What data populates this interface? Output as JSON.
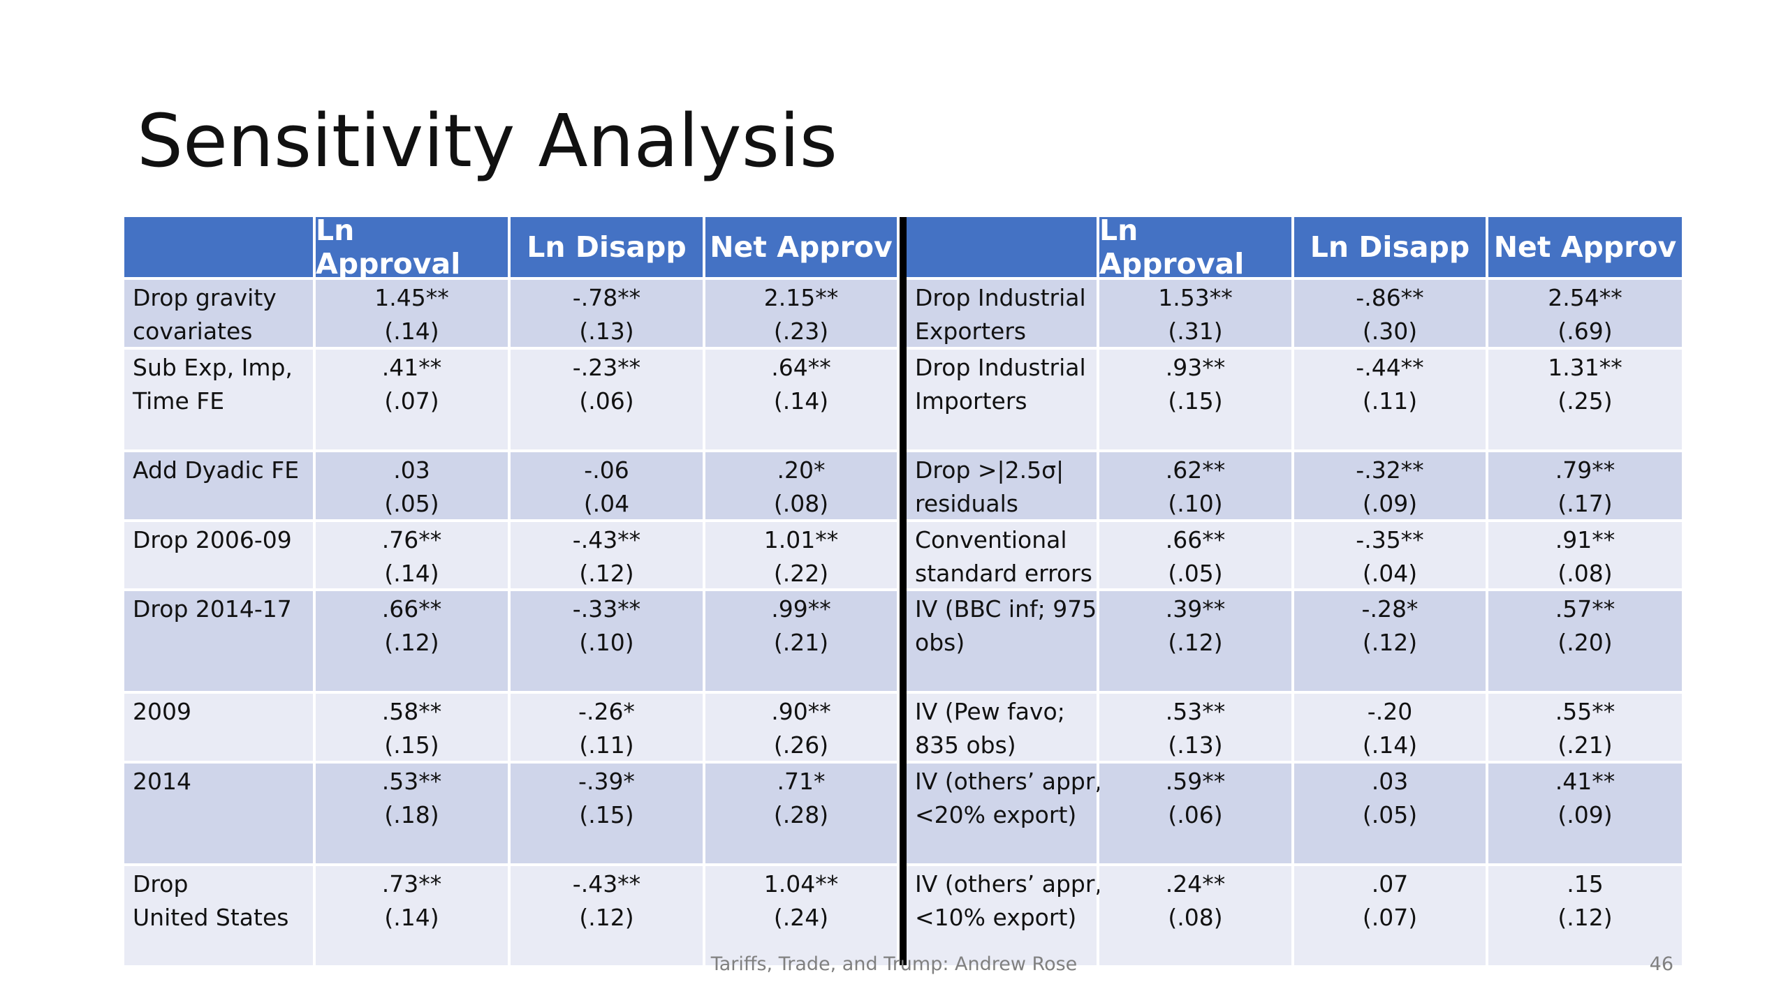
{
  "title": "Sensitivity Analysis",
  "header": {
    "left": [
      "",
      "Ln Approval",
      "Ln Disapp",
      "Net Approv"
    ],
    "right": [
      "",
      "Ln Approval",
      "Ln Disapp",
      "Net Approv"
    ]
  },
  "rows": [
    {
      "left_label": [
        "Drop gravity",
        "covariates"
      ],
      "left_vals": [
        [
          "1.45**",
          "(.14)"
        ],
        [
          "-.78**",
          "(.13)"
        ],
        [
          "2.15**",
          "(.23)"
        ]
      ],
      "right_label": [
        "Drop Industrial",
        "Exporters"
      ],
      "right_vals": [
        [
          "1.53**",
          "(.31)"
        ],
        [
          "-.86**",
          "(.30)"
        ],
        [
          "2.54**",
          "(.69)"
        ]
      ]
    },
    {
      "left_label": [
        "Sub Exp, Imp,",
        "Time FE"
      ],
      "left_vals": [
        [
          ".41**",
          "(.07)"
        ],
        [
          "-.23**",
          "(.06)"
        ],
        [
          ".64**",
          "(.14)"
        ]
      ],
      "right_label": [
        "Drop Industrial",
        "Importers"
      ],
      "right_vals": [
        [
          ".93**",
          "(.15)"
        ],
        [
          "-.44**",
          "(.11)"
        ],
        [
          "1.31**",
          "(.25)"
        ]
      ]
    },
    {
      "left_label": [
        "Add Dyadic FE",
        ""
      ],
      "left_vals": [
        [
          ".03",
          "(.05)"
        ],
        [
          "-.06",
          "(.04"
        ],
        [
          ".20*",
          "(.08)"
        ]
      ],
      "right_label": [
        "Drop >|2.5σ|",
        "residuals"
      ],
      "right_vals": [
        [
          ".62**",
          "(.10)"
        ],
        [
          "-.32**",
          "(.09)"
        ],
        [
          ".79**",
          "(.17)"
        ]
      ]
    },
    {
      "left_label": [
        "Drop 2006-09",
        ""
      ],
      "left_vals": [
        [
          ".76**",
          "(.14)"
        ],
        [
          "-.43**",
          "(.12)"
        ],
        [
          "1.01**",
          "(.22)"
        ]
      ],
      "right_label": [
        "Conventional",
        "standard errors"
      ],
      "right_vals": [
        [
          ".66**",
          "(.05)"
        ],
        [
          "-.35**",
          "(.04)"
        ],
        [
          ".91**",
          "(.08)"
        ]
      ]
    },
    {
      "left_label": [
        "Drop 2014-17",
        ""
      ],
      "left_vals": [
        [
          ".66**",
          "(.12)"
        ],
        [
          "-.33**",
          "(.10)"
        ],
        [
          ".99**",
          "(.21)"
        ]
      ],
      "right_label": [
        "IV (BBC inf; 975",
        "obs)"
      ],
      "right_vals": [
        [
          ".39**",
          "(.12)"
        ],
        [
          "-.28*",
          "(.12)"
        ],
        [
          ".57**",
          "(.20)"
        ]
      ]
    },
    {
      "left_label": [
        "2009",
        ""
      ],
      "left_vals": [
        [
          ".58**",
          "(.15)"
        ],
        [
          "-.26*",
          "(.11)"
        ],
        [
          ".90**",
          "(.26)"
        ]
      ],
      "right_label": [
        "IV (Pew favo;",
        "835 obs)"
      ],
      "right_vals": [
        [
          ".53**",
          "(.13)"
        ],
        [
          "-.20",
          "(.14)"
        ],
        [
          ".55**",
          "(.21)"
        ]
      ]
    },
    {
      "left_label": [
        "2014",
        ""
      ],
      "left_vals": [
        [
          ".53**",
          "(.18)"
        ],
        [
          "-.39*",
          "(.15)"
        ],
        [
          ".71*",
          "(.28)"
        ]
      ],
      "right_label": [
        "IV (others’ appr,",
        "<20% export)"
      ],
      "right_vals": [
        [
          ".59**",
          "(.06)"
        ],
        [
          ".03",
          "(.05)"
        ],
        [
          ".41**",
          "(.09)"
        ]
      ]
    },
    {
      "left_label": [
        "Drop",
        "United States"
      ],
      "left_vals": [
        [
          ".73**",
          "(.14)"
        ],
        [
          "-.43**",
          "(.12)"
        ],
        [
          "1.04**",
          "(.24)"
        ]
      ],
      "right_label": [
        "IV (others’ appr,",
        "<10% export)"
      ],
      "right_vals": [
        [
          ".24**",
          "(.08)"
        ],
        [
          ".07",
          "(.07)"
        ],
        [
          ".15",
          "(.12)"
        ]
      ]
    }
  ],
  "footer": "Tariffs, Trade, and Trump: Andrew Rose",
  "page_number": "46",
  "colors": {
    "header_bg": "#4472c4",
    "row_dark": "#cfd5ea",
    "row_light": "#e9ebf5",
    "divider": "#000000"
  }
}
